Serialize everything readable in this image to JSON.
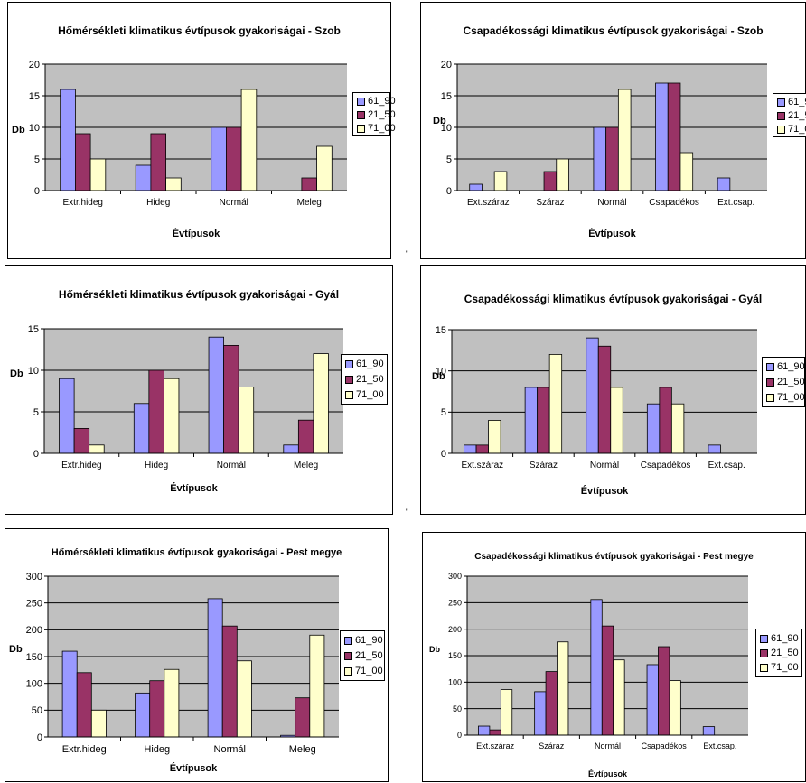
{
  "legend_colors": [
    "#9999ff",
    "#993366",
    "#ffffcc"
  ],
  "plot_bg": "#c0c0c0",
  "marks": [
    "\"",
    "\""
  ],
  "chart_data": [
    {
      "type": "bar",
      "title": "Hőmérsékleti klimatikus évtípusok gyakoriságai - Szob",
      "xlabel": "Évtípusok",
      "ylabel": "Db",
      "categories": [
        "Extr.hideg",
        "Hideg",
        "Normál",
        "Meleg"
      ],
      "ylim": [
        0,
        20
      ],
      "yticks": [
        0,
        5,
        10,
        15,
        20
      ],
      "series": [
        {
          "name": "61_90",
          "values": [
            16,
            4,
            10,
            0
          ]
        },
        {
          "name": "21_50",
          "values": [
            9,
            9,
            10,
            2
          ]
        },
        {
          "name": "71_00",
          "values": [
            5,
            2,
            16,
            7
          ]
        }
      ]
    },
    {
      "type": "bar",
      "title": "Csapadékossági klimatikus évtípusok gyakoriságai - Szob",
      "xlabel": "Évtípusok",
      "ylabel": "Db",
      "categories": [
        "Ext.száraz",
        "Száraz",
        "Normál",
        "Csapadékos",
        "Ext.csap."
      ],
      "ylim": [
        0,
        20
      ],
      "yticks": [
        0,
        5,
        10,
        15,
        20
      ],
      "series": [
        {
          "name": "61_90",
          "values": [
            1,
            0,
            10,
            17,
            2
          ]
        },
        {
          "name": "21_50",
          "values": [
            0,
            3,
            10,
            17,
            0
          ]
        },
        {
          "name": "71_00",
          "values": [
            3,
            5,
            16,
            6,
            0
          ]
        }
      ]
    },
    {
      "type": "bar",
      "title": "Hőmérsékleti klimatikus évtípusok gyakoriságai - Gyál",
      "xlabel": "Évtípusok",
      "ylabel": "Db",
      "categories": [
        "Extr.hideg",
        "Hideg",
        "Normál",
        "Meleg"
      ],
      "ylim": [
        0,
        15
      ],
      "yticks": [
        0,
        5,
        10,
        15
      ],
      "series": [
        {
          "name": "61_90",
          "values": [
            9,
            6,
            14,
            1
          ]
        },
        {
          "name": "21_50",
          "values": [
            3,
            10,
            13,
            4
          ]
        },
        {
          "name": "71_00",
          "values": [
            1,
            9,
            8,
            12
          ]
        }
      ]
    },
    {
      "type": "bar",
      "title": "Csapadékossági klimatikus évtípusok gyakoriságai - Gyál",
      "xlabel": "Évtípusok",
      "ylabel": "Db",
      "categories": [
        "Ext.száraz",
        "Száraz",
        "Normál",
        "Csapadékos",
        "Ext.csap."
      ],
      "ylim": [
        0,
        15
      ],
      "yticks": [
        0,
        5,
        10,
        15
      ],
      "series": [
        {
          "name": "61_90",
          "values": [
            1,
            8,
            14,
            6,
            1
          ]
        },
        {
          "name": "21_50",
          "values": [
            1,
            8,
            13,
            8,
            0
          ]
        },
        {
          "name": "71_00",
          "values": [
            4,
            12,
            8,
            6,
            0
          ]
        }
      ]
    },
    {
      "type": "bar",
      "title": "Hőmérsékleti klimatikus évtípusok gyakoriságai - Pest megye",
      "xlabel": "Évtípusok",
      "ylabel": "Db",
      "categories": [
        "Extr.hideg",
        "Hideg",
        "Normál",
        "Meleg"
      ],
      "ylim": [
        0,
        300
      ],
      "yticks": [
        0,
        50,
        100,
        150,
        200,
        250,
        300
      ],
      "series": [
        {
          "name": "61_90",
          "values": [
            160,
            82,
            258,
            3
          ]
        },
        {
          "name": "21_50",
          "values": [
            120,
            105,
            207,
            73
          ]
        },
        {
          "name": "71_00",
          "values": [
            50,
            126,
            142,
            190
          ]
        }
      ]
    },
    {
      "type": "bar",
      "title": "Csapadékossági klimatikus évtípusok gyakoriságai -  Pest megye",
      "xlabel": "Évtípusok",
      "ylabel": "Db",
      "categories": [
        "Ext.száraz",
        "Száraz",
        "Normál",
        "Csapadékos",
        "Ext.csap."
      ],
      "ylim": [
        0,
        300
      ],
      "yticks": [
        0,
        50,
        100,
        150,
        200,
        250,
        300
      ],
      "series": [
        {
          "name": "61_90",
          "values": [
            17,
            82,
            256,
            133,
            16
          ]
        },
        {
          "name": "21_50",
          "values": [
            10,
            120,
            206,
            167,
            0
          ]
        },
        {
          "name": "71_00",
          "values": [
            86,
            176,
            142,
            103,
            0
          ]
        }
      ]
    }
  ]
}
